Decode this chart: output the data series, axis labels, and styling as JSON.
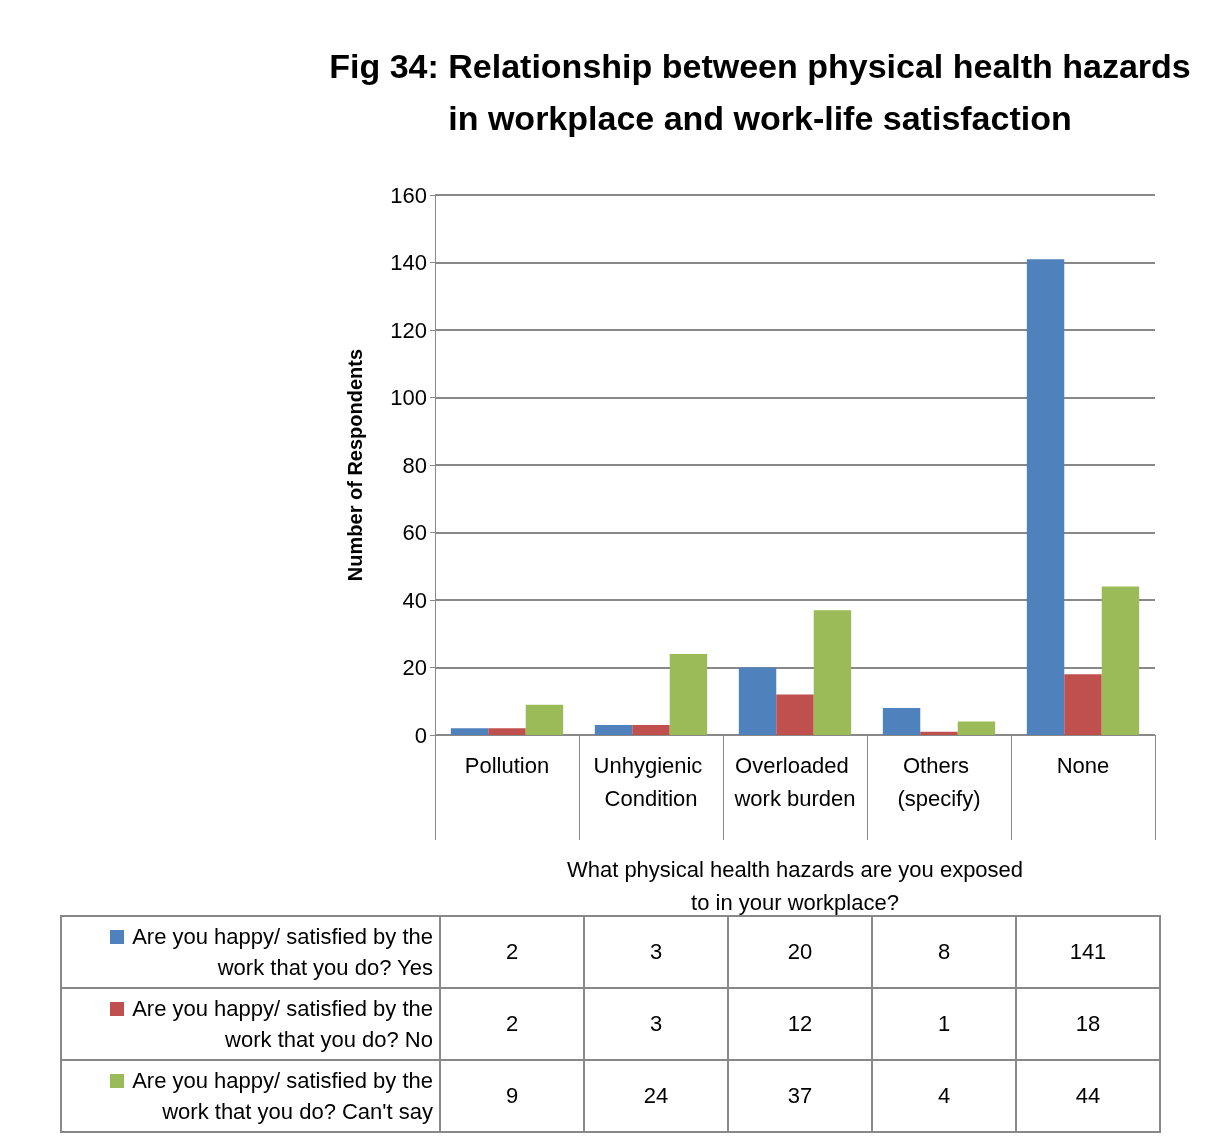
{
  "chart_data": {
    "type": "bar",
    "title": "Fig 34: Relationship between physical health hazards\nin workplace and work-life satisfaction",
    "xlabel": "What physical health hazards are you exposed\nto in your workplace?",
    "ylabel": "Number of Respondents",
    "categories": [
      "Pollution",
      "Unhygienic Condition",
      "Overloaded work burden",
      "Others (specify)",
      "None"
    ],
    "series": [
      {
        "name": "Are you happy/ satisfied by the work that you do? Yes",
        "color": "#4f81bd",
        "values": [
          2,
          3,
          20,
          8,
          141
        ]
      },
      {
        "name": "Are you happy/ satisfied by the work that you do? No",
        "color": "#c0504d",
        "values": [
          2,
          3,
          12,
          1,
          18
        ]
      },
      {
        "name": "Are you happy/ satisfied by the work that you do? Can't say",
        "color": "#9bbb59",
        "values": [
          9,
          24,
          37,
          4,
          44
        ]
      }
    ],
    "ylim": [
      0,
      160
    ],
    "yticks": [
      0,
      20,
      40,
      60,
      80,
      100,
      120,
      140,
      160
    ],
    "grid": "y",
    "legend": "bottom left",
    "data_labels": true
  }
}
